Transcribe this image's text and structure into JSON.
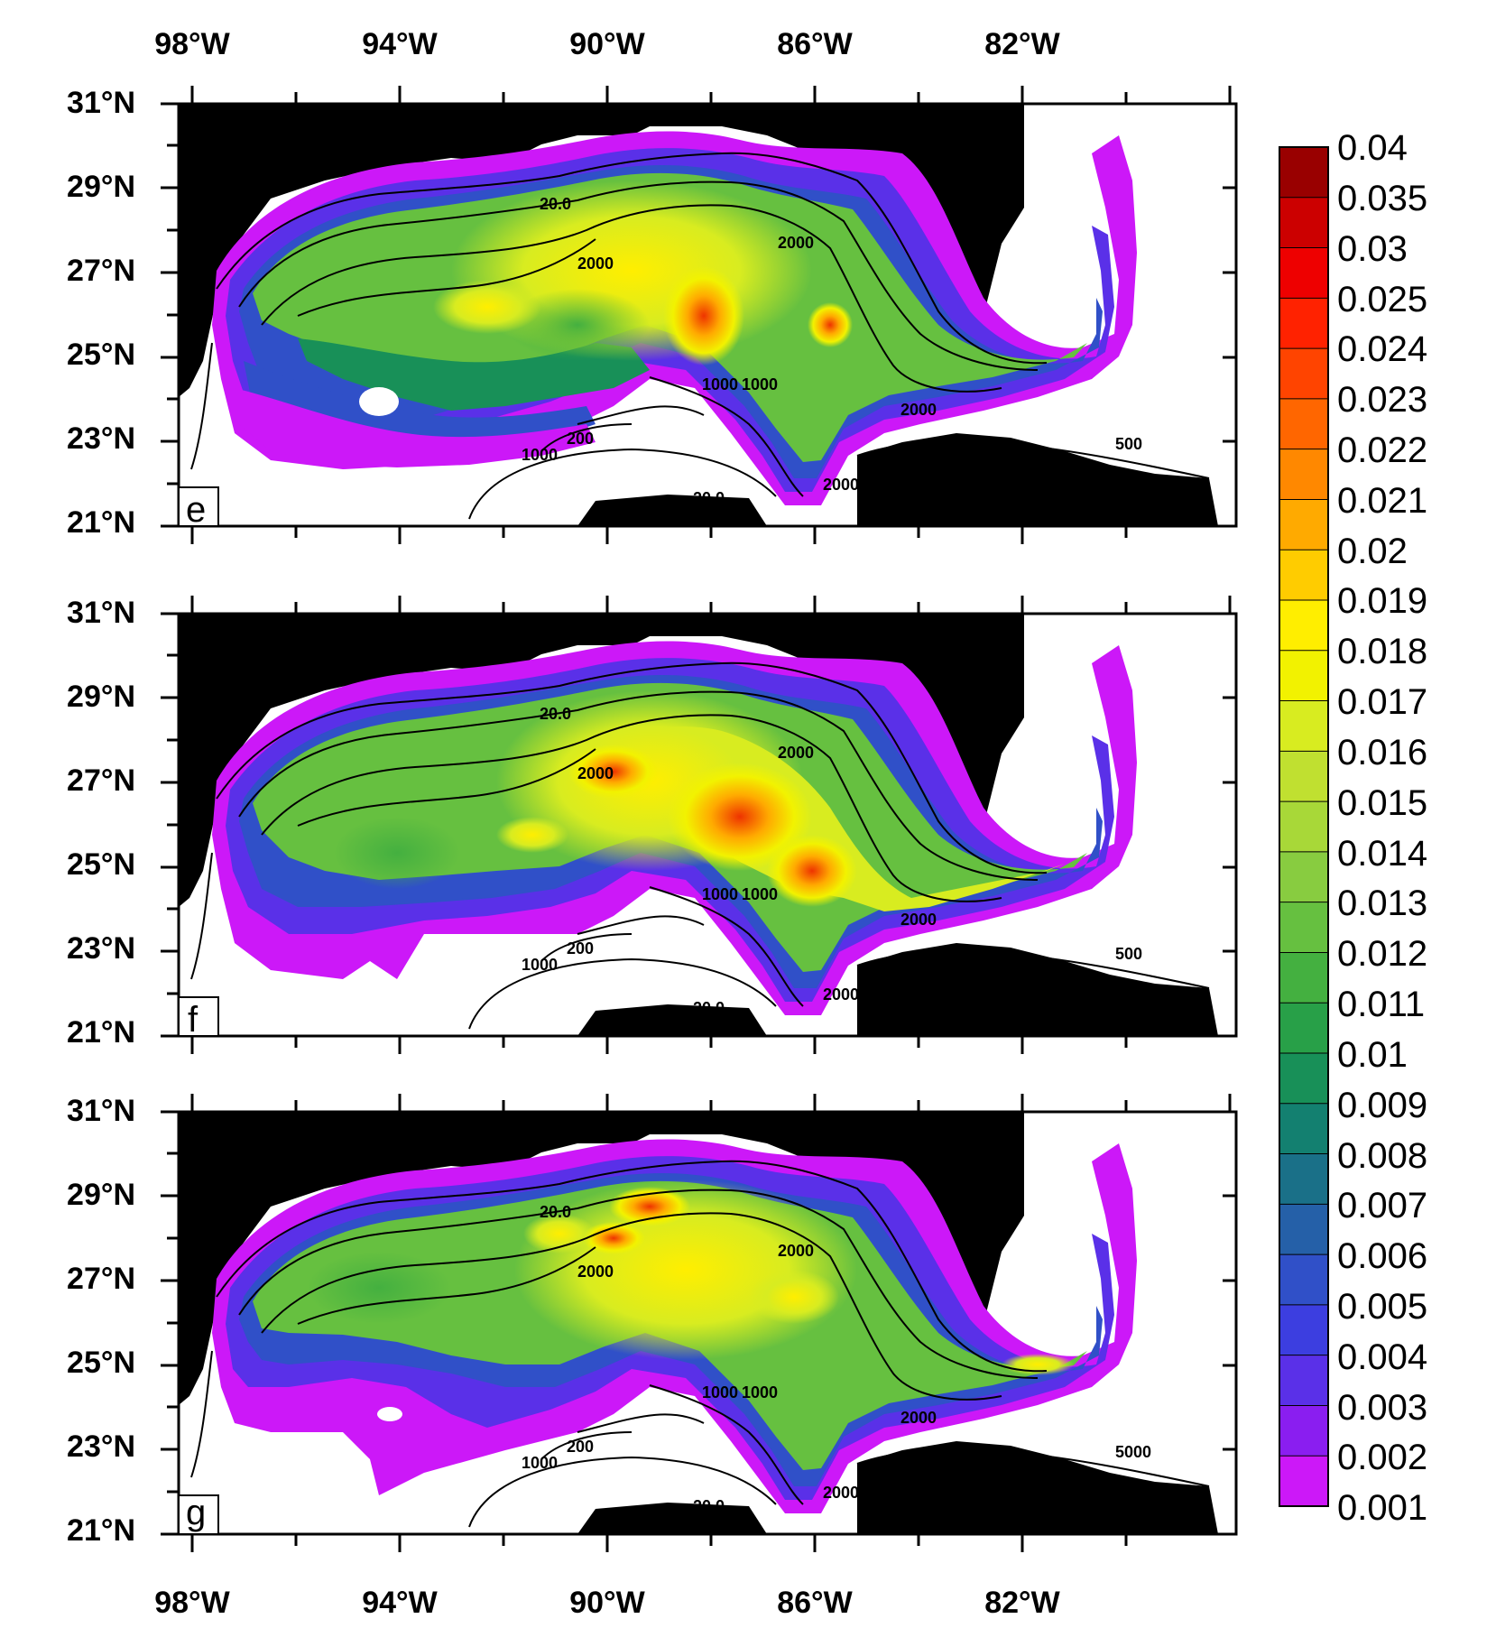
{
  "figure": {
    "top_longitude_labels": [
      "98°W",
      "94°W",
      "90°W",
      "86°W",
      "82°W"
    ],
    "bottom_longitude_labels": [
      "98°W",
      "94°W",
      "90°W",
      "86°W",
      "82°W"
    ],
    "latitude_labels": [
      "31°N",
      "29°N",
      "27°N",
      "25°N",
      "23°N",
      "21°N"
    ],
    "panels": [
      {
        "letter": "e",
        "contour_labels": [
          "20.0",
          "2000",
          "2000",
          "1000",
          "1000",
          "1000",
          "200",
          "2000",
          "2000",
          "500",
          "20.0"
        ]
      },
      {
        "letter": "f",
        "contour_labels": [
          "20.0",
          "2000",
          "2000",
          "1000",
          "1000",
          "1000",
          "200",
          "2000",
          "2000",
          "500",
          "20.0"
        ]
      },
      {
        "letter": "g",
        "contour_labels": [
          "20.0",
          "2000",
          "2000",
          "1000",
          "1000",
          "1000",
          "200",
          "2000",
          "2000",
          "5000",
          "20.0"
        ]
      }
    ],
    "colorbar": {
      "labels": [
        "0.04",
        "0.035",
        "0.03",
        "0.025",
        "0.024",
        "0.023",
        "0.022",
        "0.021",
        "0.02",
        "0.019",
        "0.018",
        "0.017",
        "0.016",
        "0.015",
        "0.014",
        "0.013",
        "0.012",
        "0.011",
        "0.01",
        "0.009",
        "0.008",
        "0.007",
        "0.006",
        "0.005",
        "0.004",
        "0.003",
        "0.002",
        "0.001"
      ],
      "colors": [
        "#990000",
        "#cc0000",
        "#ee0000",
        "#ff2200",
        "#ff4400",
        "#ff6600",
        "#ff8800",
        "#ffaa00",
        "#ffcc00",
        "#ffee00",
        "#f2f200",
        "#d8ec20",
        "#c0e030",
        "#a8d838",
        "#88cc40",
        "#66c040",
        "#44b040",
        "#28a048",
        "#189058",
        "#138070",
        "#1a7088",
        "#2560a8",
        "#3050c8",
        "#3c3ee0",
        "#5a30e8",
        "#8a1ef0",
        "#cc18f8"
      ]
    },
    "colors": {
      "land": "#000000",
      "ocean_background": "#ffffff",
      "contour": "#000000"
    }
  }
}
